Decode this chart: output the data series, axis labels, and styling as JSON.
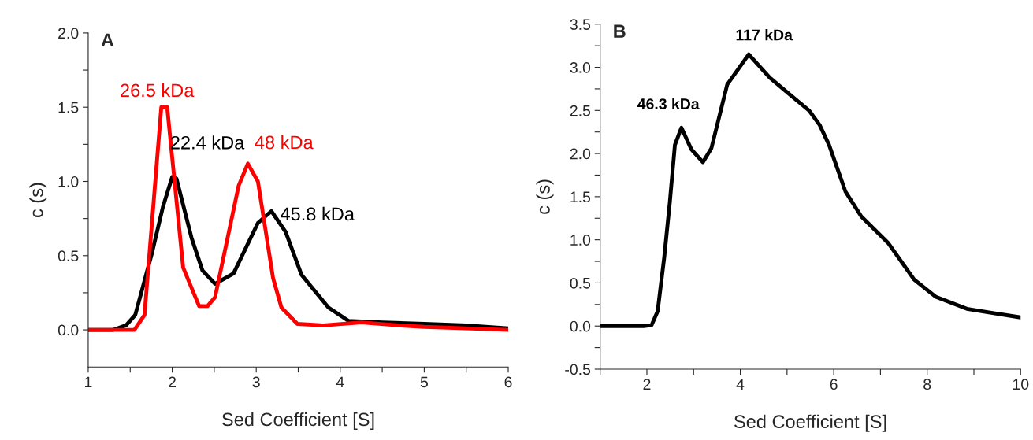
{
  "chart_data": [
    {
      "type": "line",
      "title": "A",
      "xlabel": "Sed Coefficient [S]",
      "ylabel": "c (s)",
      "xlim": [
        1,
        6
      ],
      "ylim": [
        -0.25,
        2.0
      ],
      "xticks": [
        1,
        {
          "value": 1.5,
          "label": null
        },
        2,
        {
          "value": 2.5,
          "label": null
        },
        3,
        {
          "value": 3.5,
          "label": null
        },
        4,
        {
          "value": 4.5,
          "label": null
        },
        5,
        {
          "value": 5.5,
          "label": null
        },
        6
      ],
      "yticks": [
        {
          "value": 0,
          "label": "0.0"
        },
        {
          "value": 0.25,
          "label": null
        },
        {
          "value": 0.5,
          "label": "0.5"
        },
        {
          "value": 0.75,
          "label": null
        },
        {
          "value": 1.0,
          "label": "1.0"
        },
        {
          "value": 1.25,
          "label": null
        },
        {
          "value": 1.5,
          "label": "1.5"
        },
        {
          "value": 1.75,
          "label": null
        },
        {
          "value": 2.0,
          "label": "2.0"
        }
      ],
      "grid": false,
      "legend": false,
      "marker": "none",
      "line_style": "solid",
      "series": [
        {
          "color": "#000000",
          "x": [
            1,
            1.3,
            1.45,
            1.56,
            1.76,
            1.89,
            2.0,
            2.05,
            2.23,
            2.36,
            2.51,
            2.73,
            3.02,
            3.18,
            3.35,
            3.54,
            3.86,
            4.1,
            4.5,
            5.0,
            5.5,
            6
          ],
          "values": [
            0,
            0,
            0.03,
            0.1,
            0.52,
            0.83,
            1.03,
            1.02,
            0.62,
            0.4,
            0.31,
            0.38,
            0.72,
            0.8,
            0.66,
            0.37,
            0.15,
            0.06,
            0.05,
            0.04,
            0.03,
            0.01
          ]
        },
        {
          "color": "#ff0000",
          "x": [
            1,
            1.55,
            1.67,
            1.87,
            1.94,
            2.13,
            2.32,
            2.42,
            2.51,
            2.79,
            2.9,
            3.02,
            3.2,
            3.3,
            3.49,
            3.8,
            4.25,
            4.7,
            5.0,
            5.5,
            6
          ],
          "values": [
            0,
            0,
            0.1,
            1.5,
            1.5,
            0.42,
            0.16,
            0.16,
            0.22,
            0.97,
            1.12,
            1.0,
            0.35,
            0.15,
            0.04,
            0.03,
            0.05,
            0.03,
            0.02,
            0.01,
            0.0
          ]
        }
      ],
      "annotations": [
        {
          "text": "26.5 kDa",
          "x": 1.87,
          "y": 1.5
        },
        {
          "text": "22.4 kDa",
          "x": 2.0,
          "y": 1.03
        },
        {
          "text": "48 kDa",
          "x": 2.9,
          "y": 1.12
        },
        {
          "text": "45.8 kDa",
          "x": 3.18,
          "y": 0.8
        }
      ]
    },
    {
      "type": "line",
      "title": "B",
      "xlabel": "Sed Coefficient [S]",
      "ylabel": "c (s)",
      "xlim": [
        1,
        10
      ],
      "ylim": [
        -0.5,
        3.5
      ],
      "xticks": [
        {
          "value": 1,
          "label": null
        },
        2,
        {
          "value": 3,
          "label": null
        },
        4,
        {
          "value": 5,
          "label": null
        },
        6,
        {
          "value": 7,
          "label": null
        },
        8,
        {
          "value": 9,
          "label": null
        },
        10
      ],
      "yticks": [
        {
          "value": -0.5,
          "label": "-0.5"
        },
        {
          "value": -0.25,
          "label": null
        },
        {
          "value": 0,
          "label": "0.0"
        },
        {
          "value": 0.25,
          "label": null
        },
        {
          "value": 0.5,
          "label": "0.5"
        },
        {
          "value": 0.75,
          "label": null
        },
        {
          "value": 1.0,
          "label": "1.0"
        },
        {
          "value": 1.25,
          "label": null
        },
        {
          "value": 1.5,
          "label": "1.5"
        },
        {
          "value": 1.75,
          "label": null
        },
        {
          "value": 2.0,
          "label": "2.0"
        },
        {
          "value": 2.25,
          "label": null
        },
        {
          "value": 2.5,
          "label": "2.5"
        },
        {
          "value": 2.75,
          "label": null
        },
        {
          "value": 3.0,
          "label": "3.0"
        },
        {
          "value": 3.25,
          "label": null
        },
        {
          "value": 3.5,
          "label": "3.5"
        }
      ],
      "grid": false,
      "legend": false,
      "marker": "none",
      "line_style": "solid",
      "series": [
        {
          "color": "#000000",
          "x": [
            1,
            1.93,
            2.1,
            2.23,
            2.37,
            2.49,
            2.6,
            2.74,
            2.95,
            3.2,
            3.38,
            3.72,
            4.18,
            4.63,
            5.07,
            5.47,
            5.7,
            5.9,
            6.25,
            6.59,
            7.17,
            7.72,
            8.18,
            8.85,
            9.53,
            10
          ],
          "values": [
            0,
            0,
            0.01,
            0.17,
            0.79,
            1.43,
            2.1,
            2.3,
            2.05,
            1.9,
            2.06,
            2.8,
            3.15,
            2.88,
            2.68,
            2.5,
            2.33,
            2.1,
            1.56,
            1.27,
            0.96,
            0.54,
            0.34,
            0.2,
            0.14,
            0.1
          ]
        }
      ],
      "annotations": [
        {
          "text": "46.3 kDa",
          "x": 2.74,
          "y": 2.3
        },
        {
          "text": "117 kDa",
          "x": 4.18,
          "y": 3.15
        }
      ]
    }
  ]
}
